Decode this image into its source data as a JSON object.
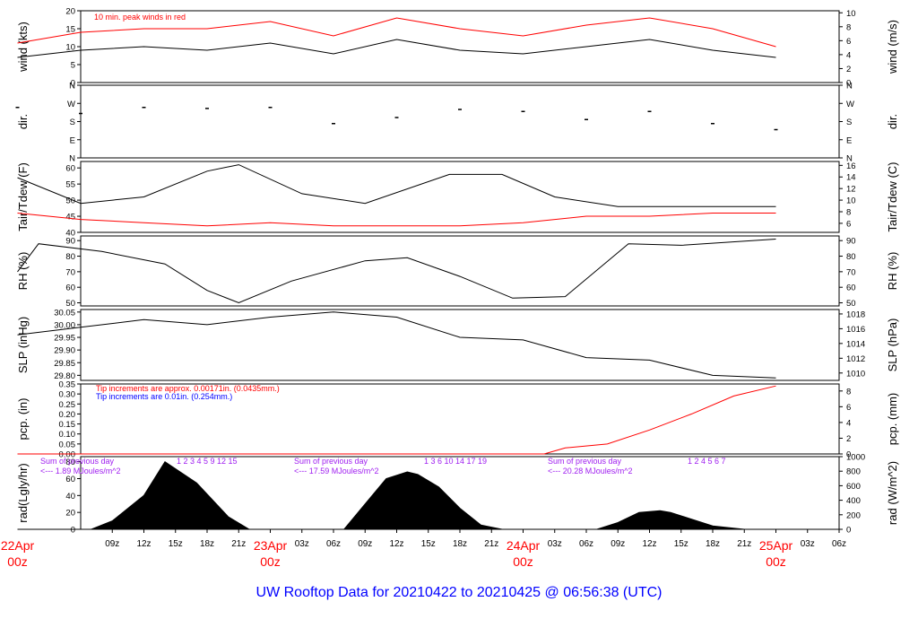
{
  "footer": "UW Rooftop Data for 20210422  to  20210425 @ 06:56:38  (UTC)",
  "colors": {
    "red": "#ff0000",
    "blue": "#0000ff",
    "purple": "#a020f0",
    "black": "#000000"
  },
  "chart_data": [
    {
      "type": "line",
      "ylabel_left": "wind (kts)",
      "ylabel_right": "wind (m/s)",
      "ylim": [
        0,
        20
      ],
      "left_ticks": [
        "0",
        "5",
        "10",
        "15",
        "20"
      ],
      "right_ticks": [
        "0",
        "2",
        "4",
        "6",
        "8",
        "10"
      ],
      "annotation": "10 min. peak winds in red",
      "series": [
        {
          "color": "#000000",
          "x": [
            0,
            6,
            12,
            18,
            24,
            30,
            36,
            42,
            48,
            54,
            60,
            66,
            72
          ],
          "y": [
            7,
            9,
            10,
            9,
            11,
            8,
            12,
            9,
            8,
            10,
            12,
            9,
            7
          ]
        },
        {
          "color": "#ff0000",
          "x": [
            0,
            6,
            12,
            18,
            24,
            30,
            36,
            42,
            48,
            54,
            60,
            66,
            72
          ],
          "y": [
            11,
            14,
            15,
            15,
            17,
            13,
            18,
            15,
            13,
            16,
            18,
            15,
            10
          ]
        }
      ]
    },
    {
      "type": "scatter",
      "ylabel_left": "dir.",
      "ylabel_right": "dir.",
      "left_ticks": [
        "N",
        "E",
        "S",
        "W",
        "N"
      ],
      "right_ticks": [
        "N",
        "E",
        "S",
        "W",
        "N"
      ],
      "series": [
        {
          "color": "#000000",
          "x": [
            0,
            6,
            12,
            18,
            24,
            30,
            36,
            42,
            48,
            54,
            60,
            66,
            72
          ],
          "y": [
            250,
            220,
            250,
            245,
            250,
            170,
            200,
            240,
            230,
            190,
            230,
            170,
            140
          ]
        }
      ]
    },
    {
      "type": "line",
      "ylabel_left": "Tair/Tdew (F)",
      "ylabel_right": "Tair/Tdew (C)",
      "ylim": [
        40,
        62
      ],
      "left_ticks": [
        "40",
        "45",
        "50",
        "55",
        "60"
      ],
      "right_ticks": [
        "6",
        "8",
        "10",
        "12",
        "14",
        "16"
      ],
      "series": [
        {
          "color": "#000000",
          "x": [
            0,
            6,
            12,
            18,
            21,
            27,
            33,
            41,
            46,
            51,
            57,
            63,
            72
          ],
          "y": [
            57,
            49,
            51,
            59,
            61,
            52,
            49,
            58,
            58,
            51,
            48,
            48,
            48
          ]
        },
        {
          "color": "#ff0000",
          "x": [
            0,
            6,
            12,
            18,
            24,
            30,
            36,
            42,
            48,
            54,
            60,
            66,
            72
          ],
          "y": [
            46,
            44,
            43,
            42,
            43,
            42,
            42,
            42,
            43,
            45,
            45,
            46,
            46
          ]
        }
      ]
    },
    {
      "type": "line",
      "ylabel_left": "RH (%)",
      "ylabel_right": "RH (%)",
      "ylim": [
        48,
        93
      ],
      "left_ticks": [
        "50",
        "60",
        "70",
        "80",
        "90"
      ],
      "right_ticks": [
        "50",
        "60",
        "70",
        "80",
        "90"
      ],
      "series": [
        {
          "color": "#000000",
          "x": [
            0,
            2,
            8,
            14,
            18,
            21,
            26,
            33,
            37,
            42,
            47,
            52,
            58,
            63,
            72
          ],
          "y": [
            70,
            88,
            83,
            75,
            58,
            50,
            64,
            77,
            79,
            67,
            53,
            54,
            88,
            87,
            91
          ]
        }
      ]
    },
    {
      "type": "line",
      "ylabel_left": "SLP (inHg)",
      "ylabel_right": "SLP (hPa)",
      "ylim": [
        29.78,
        30.06
      ],
      "left_ticks": [
        "29.80",
        "29.85",
        "29.90",
        "29.95",
        "30.00",
        "30.05"
      ],
      "right_ticks": [
        "1010",
        "1012",
        "1014",
        "1016",
        "1018"
      ],
      "series": [
        {
          "color": "#000000",
          "x": [
            0,
            6,
            12,
            18,
            24,
            30,
            36,
            42,
            48,
            54,
            60,
            66,
            72
          ],
          "y": [
            29.96,
            29.99,
            30.02,
            30.0,
            30.03,
            30.05,
            30.03,
            29.95,
            29.94,
            29.87,
            29.86,
            29.8,
            29.79
          ]
        }
      ]
    },
    {
      "type": "line",
      "ylabel_left": "pcp. (in)",
      "ylabel_right": "pcp. (mm)",
      "ylim": [
        0,
        0.35
      ],
      "left_ticks": [
        "0.00",
        "0.05",
        "0.10",
        "0.15",
        "0.20",
        "0.25",
        "0.30",
        "0.35"
      ],
      "right_ticks": [
        "0",
        "2",
        "4",
        "6",
        "8"
      ],
      "annotation_red": "Tip increments are approx. 0.00171in. (0.0435mm.)",
      "annotation_blue": "Tip increments are 0.01in. (0.254mm.)",
      "series": [
        {
          "color": "#ff0000",
          "x": [
            0,
            50,
            52,
            56,
            60,
            64,
            68,
            72
          ],
          "y": [
            0,
            0,
            0.03,
            0.05,
            0.12,
            0.2,
            0.29,
            0.34
          ]
        }
      ]
    },
    {
      "type": "area",
      "ylabel_left": "rad(Lgly/hr)",
      "ylabel_right": "rad (W/m^2)",
      "ylim": [
        0,
        86
      ],
      "left_ticks": [
        "0",
        "20",
        "40",
        "60",
        "80"
      ],
      "right_ticks": [
        "0",
        "200",
        "400",
        "600",
        "800",
        "1000"
      ],
      "x": [
        0,
        7,
        9,
        12,
        14,
        17,
        20,
        22,
        24,
        31,
        33,
        35,
        37,
        38,
        40,
        42,
        44,
        46,
        55,
        57,
        59,
        61,
        62,
        64,
        66,
        69
      ],
      "values": [
        0,
        0,
        10,
        40,
        80,
        55,
        15,
        0,
        0,
        0,
        30,
        60,
        68,
        65,
        50,
        25,
        5,
        0,
        0,
        8,
        20,
        22,
        20,
        12,
        4,
        0
      ],
      "day_sums": [
        {
          "line1": "Sum of previous day",
          "line2": "<--- 1.89 MJoules/m^2"
        },
        {
          "line1": "Sum of previous day",
          "line2": "<--- 17.59 MJoules/m^2"
        },
        {
          "line1": "Sum of previous day",
          "line2": "<--- 20.28 MJoules/m^2"
        }
      ],
      "hour_marks": [
        {
          "day": 0,
          "labels": [
            "1",
            "2",
            "3",
            "4",
            "5",
            "9",
            "12",
            "15"
          ]
        },
        {
          "day": 1,
          "labels": [
            "1",
            "3",
            "6",
            "10",
            "14",
            "17",
            "19"
          ]
        },
        {
          "day": 2,
          "labels": [
            "1",
            "2",
            "4",
            "5",
            "6",
            "7"
          ]
        }
      ]
    }
  ],
  "x_axis": {
    "ticks": [
      "09z",
      "12z",
      "15z",
      "18z",
      "21z",
      "23Apr",
      "03z",
      "06z",
      "09z",
      "12z",
      "15z",
      "18z",
      "21z",
      "24Apr",
      "03z",
      "06z",
      "09z",
      "12z",
      "15z",
      "18z",
      "21z",
      "25Apr",
      "03z",
      "06z"
    ],
    "day_labels": [
      {
        "date": "22Apr",
        "hour": "00z"
      },
      {
        "date": "23Apr",
        "hour": "00z"
      },
      {
        "date": "24Apr",
        "hour": "00z"
      },
      {
        "date": "25Apr",
        "hour": "00z"
      }
    ]
  }
}
